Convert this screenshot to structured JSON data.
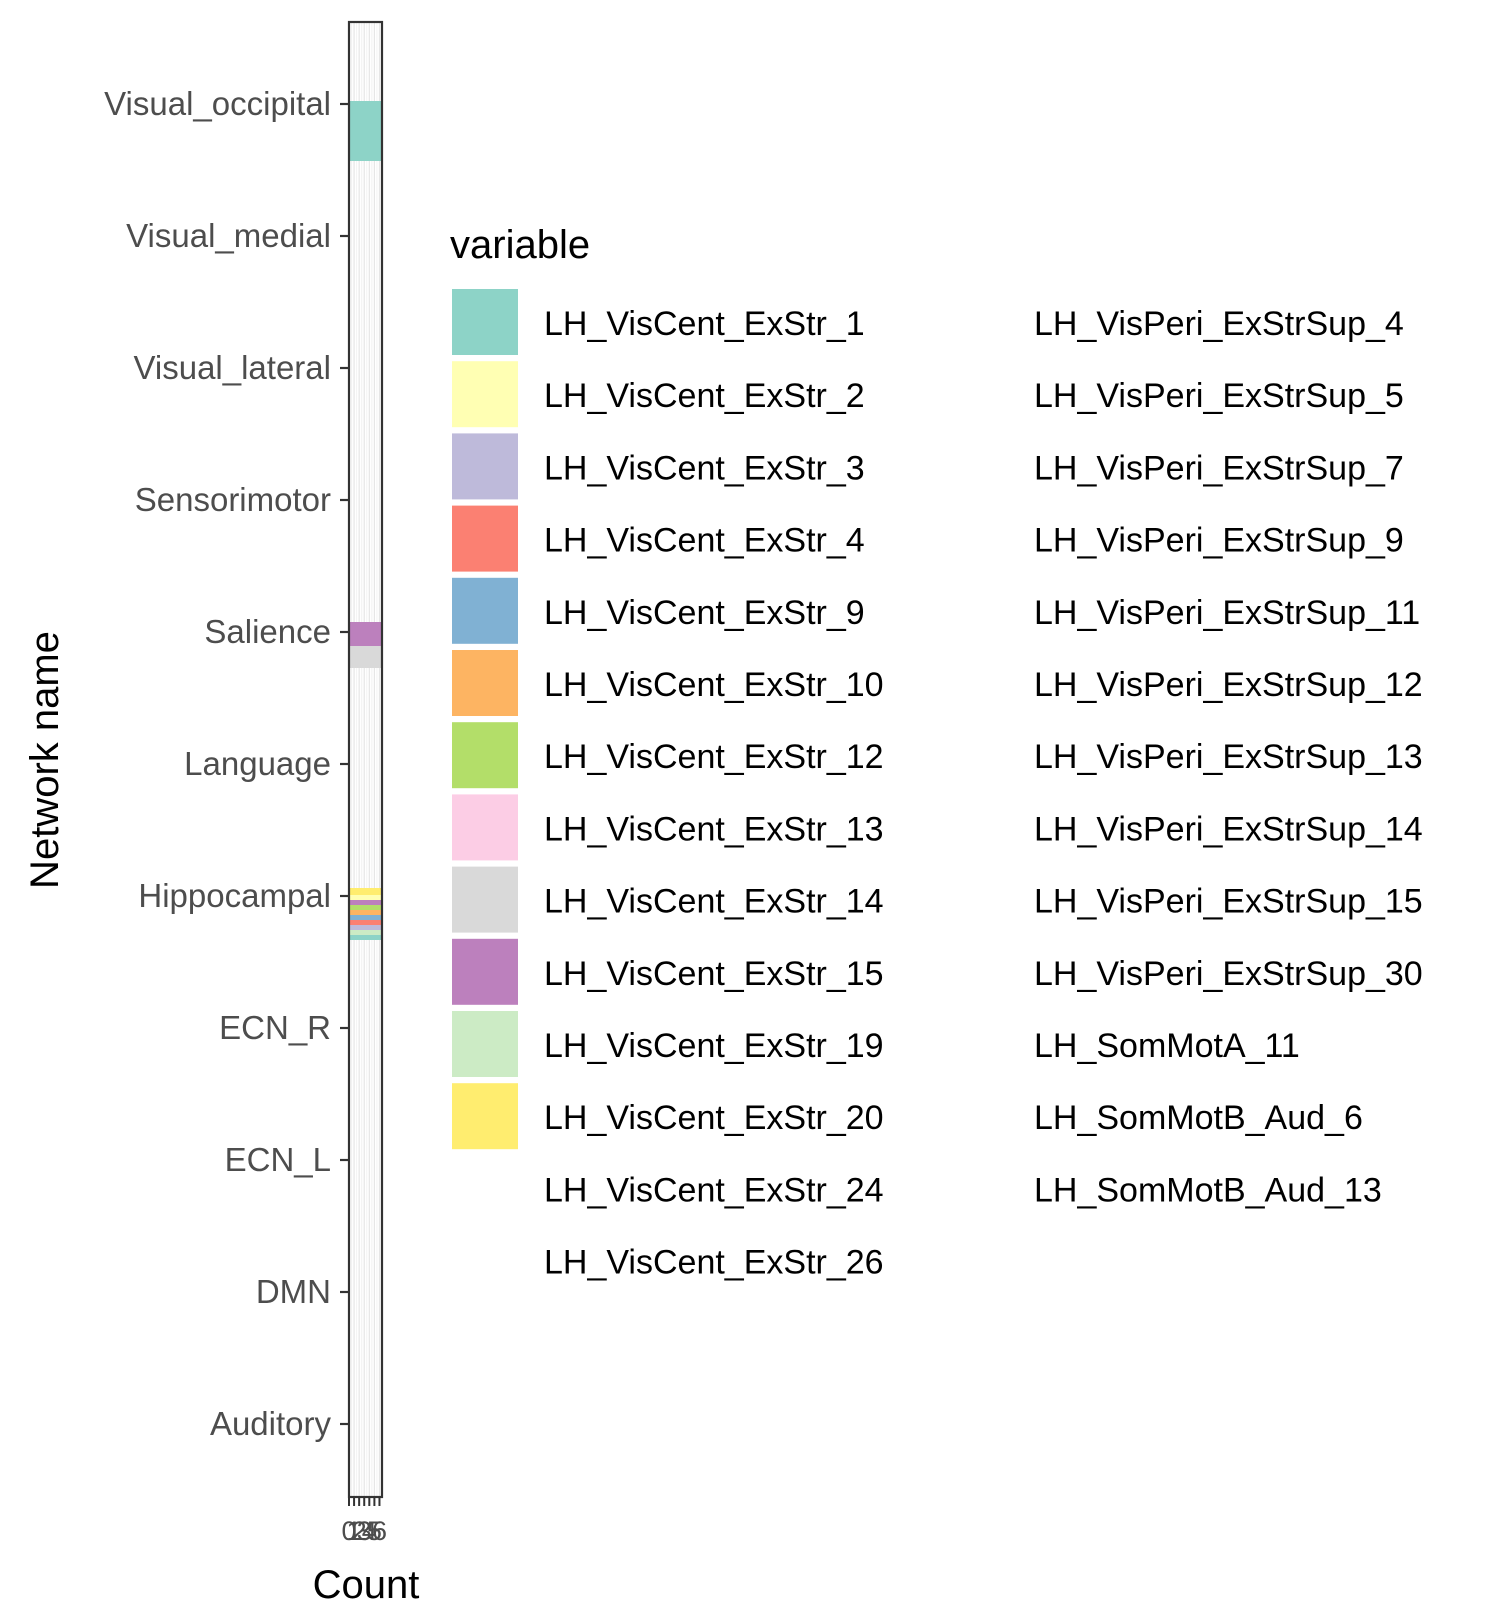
{
  "chart_data": {
    "type": "bar",
    "orientation": "horizontal",
    "stacked": true,
    "title": "",
    "xlabel": "Count",
    "ylabel": "Network name",
    "categories": [
      "Visual_occipital",
      "Visual_medial",
      "Visual_lateral",
      "Sensorimotor",
      "Salience",
      "Language",
      "Hippocampal",
      "ECN_R",
      "ECN_L",
      "DMN",
      "Auditory"
    ],
    "xlim": [
      0,
      6.5
    ],
    "x_ticks": [
      "0",
      "1",
      "2",
      "3",
      "4",
      "5",
      "6"
    ],
    "grid": true,
    "legend": {
      "title": "variable",
      "position": "right",
      "columns": 2,
      "entries": [
        {
          "label": "LH_VisCent_ExStr_1",
          "color": "#8DD3C7"
        },
        {
          "label": "LH_VisCent_ExStr_2",
          "color": "#FFFFB3"
        },
        {
          "label": "LH_VisCent_ExStr_3",
          "color": "#BEBADA"
        },
        {
          "label": "LH_VisCent_ExStr_4",
          "color": "#FB8072"
        },
        {
          "label": "LH_VisCent_ExStr_9",
          "color": "#80B1D3"
        },
        {
          "label": "LH_VisCent_ExStr_10",
          "color": "#FDB462"
        },
        {
          "label": "LH_VisCent_ExStr_12",
          "color": "#B3DE69"
        },
        {
          "label": "LH_VisCent_ExStr_13",
          "color": "#FCCDE5"
        },
        {
          "label": "LH_VisCent_ExStr_14",
          "color": "#D9D9D9"
        },
        {
          "label": "LH_VisCent_ExStr_15",
          "color": "#BC80BD"
        },
        {
          "label": "LH_VisCent_ExStr_19",
          "color": "#CCEBC5"
        },
        {
          "label": "LH_VisCent_ExStr_20",
          "color": "#FFED6F"
        },
        {
          "label": "LH_VisCent_ExStr_24",
          "color": ""
        },
        {
          "label": "LH_VisCent_ExStr_26",
          "color": ""
        },
        {
          "label": "LH_VisPeri_ExStrSup_4",
          "color": ""
        },
        {
          "label": "LH_VisPeri_ExStrSup_5",
          "color": ""
        },
        {
          "label": "LH_VisPeri_ExStrSup_7",
          "color": ""
        },
        {
          "label": "LH_VisPeri_ExStrSup_9",
          "color": ""
        },
        {
          "label": "LH_VisPeri_ExStrSup_11",
          "color": ""
        },
        {
          "label": "LH_VisPeri_ExStrSup_12",
          "color": ""
        },
        {
          "label": "LH_VisPeri_ExStrSup_13",
          "color": ""
        },
        {
          "label": "LH_VisPeri_ExStrSup_14",
          "color": ""
        },
        {
          "label": "LH_VisPeri_ExStrSup_15",
          "color": ""
        },
        {
          "label": "LH_VisPeri_ExStrSup_30",
          "color": ""
        },
        {
          "label": "LH_SomMotA_11",
          "color": ""
        },
        {
          "label": "LH_SomMotB_Aud_6",
          "color": ""
        },
        {
          "label": "LH_SomMotB_Aud_13",
          "color": ""
        }
      ]
    },
    "visible_segments": [
      {
        "category": "Visual_occipital",
        "series": "LH_VisCent_ExStr_1",
        "color": "#8DD3C7"
      },
      {
        "category": "Salience",
        "series": "LH_VisCent_ExStr_15",
        "color": "#BC80BD"
      },
      {
        "category": "Salience",
        "series": "LH_VisCent_ExStr_14",
        "color": "#D9D9D9"
      },
      {
        "category": "Hippocampal",
        "series": "LH_VisCent_ExStr_20",
        "color": "#FFED6F"
      },
      {
        "category": "Hippocampal",
        "series": "LH_VisCent_ExStr_2",
        "color": "#FFFFB3"
      },
      {
        "category": "Hippocampal",
        "series": "LH_VisCent_ExStr_15",
        "color": "#BC80BD"
      },
      {
        "category": "Hippocampal",
        "series": "LH_VisCent_ExStr_12",
        "color": "#B3DE69"
      },
      {
        "category": "Hippocampal",
        "series": "LH_VisCent_ExStr_10",
        "color": "#FDB462"
      },
      {
        "category": "Hippocampal",
        "series": "LH_VisCent_ExStr_9",
        "color": "#80B1D3"
      },
      {
        "category": "Hippocampal",
        "series": "LH_VisCent_ExStr_4",
        "color": "#FB8072"
      },
      {
        "category": "Hippocampal",
        "series": "LH_VisCent_ExStr_3",
        "color": "#BEBADA"
      },
      {
        "category": "Hippocampal",
        "series": "LH_VisCent_ExStr_19",
        "color": "#CCEBC5"
      },
      {
        "category": "Hippocampal",
        "series": "LH_VisCent_ExStr_1",
        "color": "#8DD3C7"
      }
    ]
  }
}
